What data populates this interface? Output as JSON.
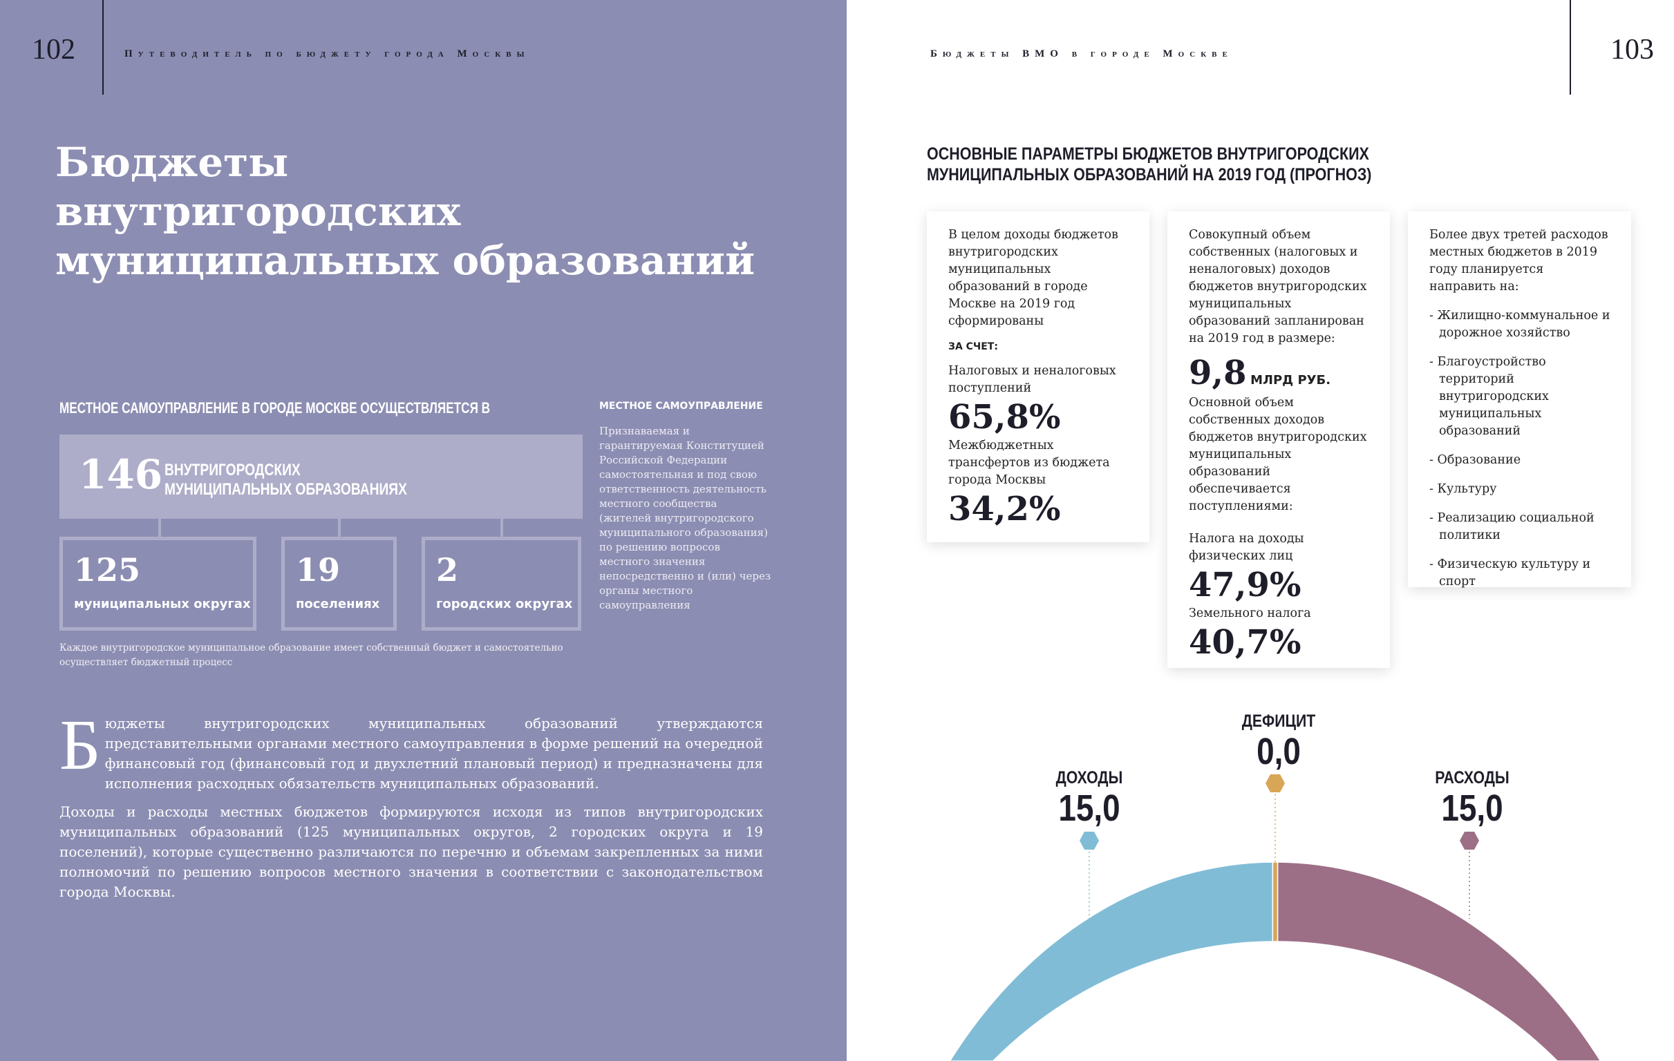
{
  "left_page": {
    "page_number": "102",
    "running_head": "Путеводитель по бюджету города Москвы",
    "title_lines": [
      "Бюджеты",
      "внутригородских",
      "муниципальных образований"
    ],
    "section_heading": "МЕСТНОЕ САМОУПРАВЛЕНИЕ В ГОРОДЕ МОСКВЕ ОСУЩЕСТВЛЯЕТСЯ В",
    "total": {
      "number": "146",
      "label_1": "ВНУТРИГОРОДСКИХ",
      "label_2": "МУНИЦИПАЛЬНЫХ ОБРАЗОВАНИЯХ"
    },
    "parts": [
      {
        "number": "125",
        "label": "муниципальных округах"
      },
      {
        "number": "19",
        "label": "поселениях"
      },
      {
        "number": "2",
        "label": "городских округах"
      }
    ],
    "footnote": "Каждое внутригородское муниципальное образование имеет собственный бюджет и самостоятельно осуществляет бюджетный процесс",
    "sidebar": {
      "heading": "МЕСТНОЕ САМОУПРАВЛЕНИЕ",
      "text": "Признаваемая и гарантируемая Конституцией Российской Федерации самостоятельная и под свою ответственность деятельность местного сообщества (жителей внутригородского муниципального образования) по решению вопросов местного значения непосредственно и (или) через органы местного самоуправления"
    },
    "body": {
      "drop_cap": "Б",
      "p1": "юджеты внутригородских муниципальных образований утверждаются представительными органами местного самоуправления  в форме решений на очередной финансовый год (финансовый год и двухлетний плановый период) и предназначены для исполнения расходных обязательств муниципальных образований.",
      "p2": "Доходы и расходы местных бюджетов формируются исходя из типов внутригородских муниципальных образований (125 муниципальных округов, 2 городских округа и 19 поселений), которые существенно различаются по перечню и объемам закрепленных за ними полномочий по решению вопросов местного значения в соответствии с законодательством города Москвы."
    }
  },
  "right_page": {
    "page_number": "103",
    "running_head": "Бюджеты ВМО в городе Москве",
    "heading_1": "ОСНОВНЫЕ ПАРАМЕТРЫ БЮДЖЕТОВ ВНУТРИГОРОДСКИХ",
    "heading_2": "МУНИЦИПАЛЬНЫХ ОБРАЗОВАНИЙ НА 2019 ГОД (ПРОГНОЗ)",
    "card1": {
      "intro": "В целом доходы бюджетов внутригородских муниципальных образований в городе Москве на 2019 год сформированы",
      "label": "ЗА СЧЕТ:",
      "item1": "Налоговых и неналоговых поступлений",
      "value1": "65,8%",
      "item2": "Межбюджетных трансфертов из бюджета города Москвы",
      "value2": "34,2%"
    },
    "card2": {
      "intro": "Совокупный объем собственных (налоговых и неналоговых) доходов бюджетов внутригородских муниципальных образований запланирован на 2019 год в размере:",
      "amount": "9,8",
      "unit": "МЛРД РУБ.",
      "text": "Основной объем собственных доходов бюджетов внутригородских муниципальных образований обеспечивается поступлениями:",
      "item1": "Налога на доходы физических лиц",
      "value1": "47,9%",
      "item2": "Земельного налога",
      "value2": "40,7%"
    },
    "card3": {
      "intro": "Более двух третей расходов местных бюджетов в 2019 году планируется направить на:",
      "items": [
        "- Жилищно-коммунальное и дорожное хозяйство",
        "- Благоустройство территорий внутригородских муниципальных образований",
        "- Образование",
        "- Культуру",
        "- Реализацию социальной политики",
        "- Физическую культуру и спорт"
      ]
    }
  },
  "chart_data": {
    "type": "pie",
    "variant": "half-donut",
    "categories": [
      "ДОХОДЫ",
      "ДЕФИЦИТ",
      "РАСХОДЫ"
    ],
    "values": [
      15.0,
      0.0,
      15.0
    ],
    "value_labels": [
      "15,0",
      "0,0",
      "15,0"
    ],
    "colors": [
      "#80bcd6",
      "#d9a556",
      "#9c6f87"
    ]
  }
}
